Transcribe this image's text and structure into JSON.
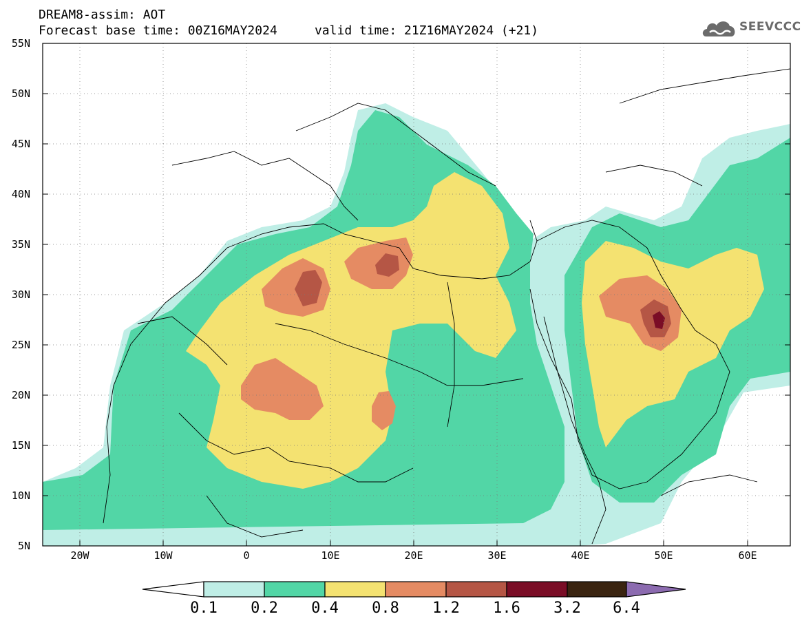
{
  "header": {
    "title_line1": "DREAM8-assim: AOT",
    "title_line2": "Forecast base time: 00Z16MAY2024     valid time: 21Z16MAY2024 (+21)"
  },
  "logo": {
    "text": "SEEVCCC",
    "icon": "cloud-icon",
    "color": "#6b6b6b"
  },
  "map": {
    "lat_labels": [
      "55N",
      "50N",
      "45N",
      "40N",
      "35N",
      "30N",
      "25N",
      "20N",
      "15N",
      "10N",
      "5N"
    ],
    "lon_labels": [
      "20W",
      "10W",
      "0",
      "10E",
      "20E",
      "30E",
      "40E",
      "50E",
      "60E"
    ],
    "field_colors": {
      "0.1-0.2": "#bfeee6",
      "0.2-0.4": "#52d6a6",
      "0.4-0.8": "#f4e271",
      "0.8-1.2": "#e58b63",
      "1.2-1.6": "#b55645",
      "1.6-3.2": "#7a0d26"
    }
  },
  "colorbar": {
    "labels": [
      "0.1",
      "0.2",
      "0.4",
      "0.8",
      "1.2",
      "1.6",
      "3.2",
      "6.4"
    ],
    "colors": [
      "#bfeee6",
      "#52d6a6",
      "#f4e271",
      "#e58b63",
      "#b55645",
      "#7a0d26",
      "#3a2410",
      "#8c6bb0"
    ]
  }
}
